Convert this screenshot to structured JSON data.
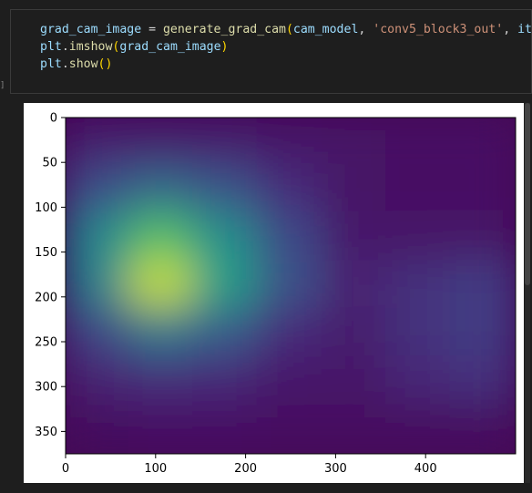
{
  "cell": {
    "prompt_marker": "]",
    "code": {
      "line1": {
        "var": "grad_cam_image",
        "eq": " = ",
        "fn": "generate_grad_cam",
        "open": "(",
        "arg1": "cam_model",
        "sep1": ", ",
        "arg2": "'conv5_block3_out'",
        "sep2": ", ",
        "arg3": "item",
        "close": ")"
      },
      "line2": {
        "mod": "plt",
        "dot": ".",
        "fn": "imshow",
        "open": "(",
        "arg": "grad_cam_image",
        "close": ")"
      },
      "line3": {
        "mod": "plt",
        "dot": ".",
        "fn": "show",
        "open": "(",
        "close": ")"
      }
    }
  },
  "chart_data": {
    "type": "heatmap",
    "colormap": "viridis",
    "image_width": 500,
    "image_height": 375,
    "xlim": [
      0,
      500
    ],
    "ylim": [
      375,
      0
    ],
    "x_ticks": [
      0,
      100,
      200,
      300,
      400
    ],
    "y_ticks": [
      0,
      50,
      100,
      150,
      200,
      250,
      300,
      350
    ],
    "x_tick_labels": [
      "0",
      "100",
      "200",
      "300",
      "400"
    ],
    "y_tick_labels": [
      "0",
      "50",
      "100",
      "150",
      "200",
      "250",
      "300",
      "350"
    ],
    "grid_rows": 7,
    "grid_cols": 7,
    "cell_values": [
      [
        0.1,
        0.1,
        0.1,
        0.08,
        0.07,
        0.06,
        0.06
      ],
      [
        0.3,
        0.42,
        0.32,
        0.16,
        0.07,
        0.06,
        0.06
      ],
      [
        0.58,
        0.82,
        0.62,
        0.28,
        0.09,
        0.08,
        0.08
      ],
      [
        0.55,
        0.95,
        0.7,
        0.32,
        0.12,
        0.18,
        0.22
      ],
      [
        0.26,
        0.48,
        0.36,
        0.16,
        0.1,
        0.18,
        0.22
      ],
      [
        0.12,
        0.16,
        0.14,
        0.09,
        0.08,
        0.14,
        0.18
      ],
      [
        0.04,
        0.06,
        0.06,
        0.05,
        0.05,
        0.05,
        0.05
      ]
    ]
  }
}
